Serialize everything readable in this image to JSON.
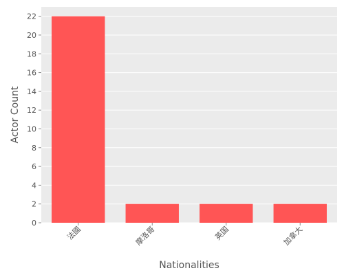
{
  "chart_data": {
    "type": "bar",
    "title": "",
    "xlabel": "Nationalities",
    "ylabel": "Actor Count",
    "categories": [
      "法國",
      "摩洛哥",
      "英国",
      "加拿大"
    ],
    "values": [
      22,
      2,
      2,
      2
    ],
    "ylim": [
      0,
      23
    ],
    "yticks": [
      0,
      2,
      4,
      6,
      8,
      10,
      12,
      14,
      16,
      18,
      20,
      22
    ],
    "grid": true,
    "bar_color": "#ff5555",
    "background_color": "#ebebeb",
    "grid_color": "#ffffff"
  }
}
